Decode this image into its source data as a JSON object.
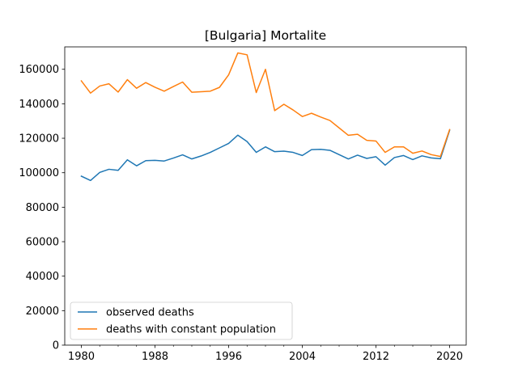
{
  "chart_data": {
    "type": "line",
    "title": "[Bulgaria] Mortalite",
    "xlabel": "",
    "ylabel": "",
    "xlim": [
      1978.2,
      2021.8
    ],
    "ylim": [
      0,
      173000
    ],
    "x_ticks": [
      1980,
      1988,
      1996,
      2004,
      2012,
      2020
    ],
    "x_minor_ticks": [
      1982,
      1984,
      1986,
      1990,
      1992,
      1994,
      1998,
      2000,
      2002,
      2006,
      2008,
      2010,
      2014,
      2016,
      2018
    ],
    "y_ticks": [
      0,
      20000,
      40000,
      60000,
      80000,
      100000,
      120000,
      140000,
      160000
    ],
    "grid": false,
    "legend_position": "lower-left",
    "x": [
      1980,
      1981,
      1982,
      1983,
      1984,
      1985,
      1986,
      1987,
      1988,
      1989,
      1990,
      1991,
      1992,
      1993,
      1994,
      1995,
      1996,
      1997,
      1998,
      1999,
      2000,
      2001,
      2002,
      2003,
      2004,
      2005,
      2006,
      2007,
      2008,
      2009,
      2010,
      2011,
      2012,
      2013,
      2014,
      2015,
      2016,
      2017,
      2018,
      2019,
      2020
    ],
    "series": [
      {
        "name": "observed deaths",
        "color": "#1f77b4",
        "values": [
          98000,
          95500,
          100200,
          102000,
          101400,
          107500,
          104000,
          107000,
          107200,
          106800,
          108500,
          110400,
          108000,
          109700,
          111800,
          114400,
          117000,
          121800,
          118100,
          111800,
          115000,
          112200,
          112500,
          111800,
          110000,
          113400,
          113600,
          113000,
          110500,
          108000,
          110200,
          108300,
          109300,
          104400,
          108800,
          110000,
          107600,
          109800,
          108600,
          108100,
          124600
        ]
      },
      {
        "name": "deaths with constant population",
        "color": "#ff7f0e",
        "values": [
          153300,
          146200,
          150300,
          151600,
          146800,
          154000,
          149000,
          152300,
          149600,
          147300,
          150000,
          152600,
          146700,
          147000,
          147300,
          149500,
          156800,
          169500,
          168400,
          146500,
          160000,
          136000,
          139700,
          136400,
          132600,
          134500,
          132300,
          130300,
          126000,
          121700,
          122300,
          118800,
          118400,
          111800,
          115000,
          115000,
          111300,
          112600,
          110500,
          109400,
          125000
        ]
      }
    ]
  }
}
